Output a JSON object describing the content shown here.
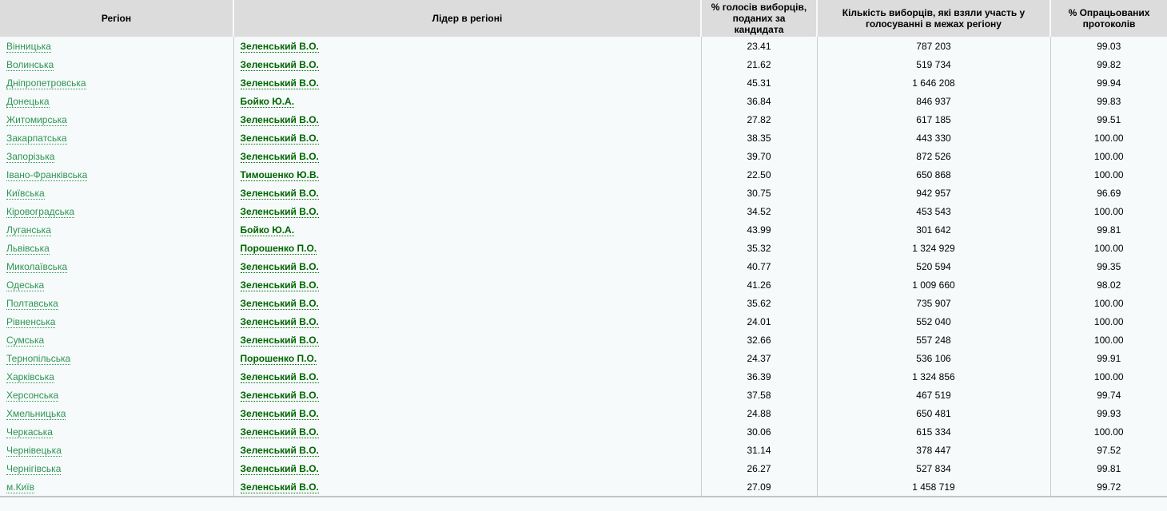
{
  "colors": {
    "header_bg": "#dcdcdc",
    "body_bg": "#f6fafa",
    "region_link_green": "#2e9455",
    "leader_link_green": "#006600",
    "cell_divider": "#c9cdcd",
    "bottom_border": "#c2c6cb"
  },
  "table": {
    "columns": [
      {
        "label": "Регіон"
      },
      {
        "label": "Лідер в регіоні"
      },
      {
        "label": "% голосів виборців, поданих за кандидата"
      },
      {
        "label": "Кількість виборців, які взяли участь у голосуванні в межах регіону"
      },
      {
        "label": "% Опрацьованих протоколів"
      }
    ],
    "rows": [
      {
        "region": "Вінницька",
        "leader": "Зеленський В.О.",
        "percent": "23.41",
        "voters": "787 203",
        "protocols": "99.03"
      },
      {
        "region": "Волинська",
        "leader": "Зеленський В.О.",
        "percent": "21.62",
        "voters": "519 734",
        "protocols": "99.82"
      },
      {
        "region": "Дніпропетровська",
        "leader": "Зеленський В.О.",
        "percent": "45.31",
        "voters": "1 646 208",
        "protocols": "99.94"
      },
      {
        "region": "Донецька",
        "leader": "Бойко Ю.А.",
        "percent": "36.84",
        "voters": "846 937",
        "protocols": "99.83"
      },
      {
        "region": "Житомирська",
        "leader": "Зеленський В.О.",
        "percent": "27.82",
        "voters": "617 185",
        "protocols": "99.51"
      },
      {
        "region": "Закарпатська",
        "leader": "Зеленський В.О.",
        "percent": "38.35",
        "voters": "443 330",
        "protocols": "100.00"
      },
      {
        "region": "Запорізька",
        "leader": "Зеленський В.О.",
        "percent": "39.70",
        "voters": "872 526",
        "protocols": "100.00"
      },
      {
        "region": "Івано-Франківська",
        "leader": "Тимошенко Ю.В.",
        "percent": "22.50",
        "voters": "650 868",
        "protocols": "100.00"
      },
      {
        "region": "Київська",
        "leader": "Зеленський В.О.",
        "percent": "30.75",
        "voters": "942 957",
        "protocols": "96.69"
      },
      {
        "region": "Кіровоградська",
        "leader": "Зеленський В.О.",
        "percent": "34.52",
        "voters": "453 543",
        "protocols": "100.00"
      },
      {
        "region": "Луганська",
        "leader": "Бойко Ю.А.",
        "percent": "43.99",
        "voters": "301 642",
        "protocols": "99.81"
      },
      {
        "region": "Львівська",
        "leader": "Порошенко П.О.",
        "percent": "35.32",
        "voters": "1 324 929",
        "protocols": "100.00"
      },
      {
        "region": "Миколаївська",
        "leader": "Зеленський В.О.",
        "percent": "40.77",
        "voters": "520 594",
        "protocols": "99.35"
      },
      {
        "region": "Одеська",
        "leader": "Зеленський В.О.",
        "percent": "41.26",
        "voters": "1 009 660",
        "protocols": "98.02"
      },
      {
        "region": "Полтавська",
        "leader": "Зеленський В.О.",
        "percent": "35.62",
        "voters": "735 907",
        "protocols": "100.00"
      },
      {
        "region": "Рівненська",
        "leader": "Зеленський В.О.",
        "percent": "24.01",
        "voters": "552 040",
        "protocols": "100.00"
      },
      {
        "region": "Сумська",
        "leader": "Зеленський В.О.",
        "percent": "32.66",
        "voters": "557 248",
        "protocols": "100.00"
      },
      {
        "region": "Тернопільська",
        "leader": "Порошенко П.О.",
        "percent": "24.37",
        "voters": "536 106",
        "protocols": "99.91"
      },
      {
        "region": "Харківська",
        "leader": "Зеленський В.О.",
        "percent": "36.39",
        "voters": "1 324 856",
        "protocols": "100.00"
      },
      {
        "region": "Херсонська",
        "leader": "Зеленський В.О.",
        "percent": "37.58",
        "voters": "467 519",
        "protocols": "99.74"
      },
      {
        "region": "Хмельницька",
        "leader": "Зеленський В.О.",
        "percent": "24.88",
        "voters": "650 481",
        "protocols": "99.93"
      },
      {
        "region": "Черкаська",
        "leader": "Зеленський В.О.",
        "percent": "30.06",
        "voters": "615 334",
        "protocols": "100.00"
      },
      {
        "region": "Чернівецька",
        "leader": "Зеленський В.О.",
        "percent": "31.14",
        "voters": "378 447",
        "protocols": "97.52"
      },
      {
        "region": "Чернігівська",
        "leader": "Зеленський В.О.",
        "percent": "26.27",
        "voters": "527 834",
        "protocols": "99.81"
      },
      {
        "region": "м.Київ",
        "leader": "Зеленський В.О.",
        "percent": "27.09",
        "voters": "1 458 719",
        "protocols": "99.72"
      }
    ]
  }
}
